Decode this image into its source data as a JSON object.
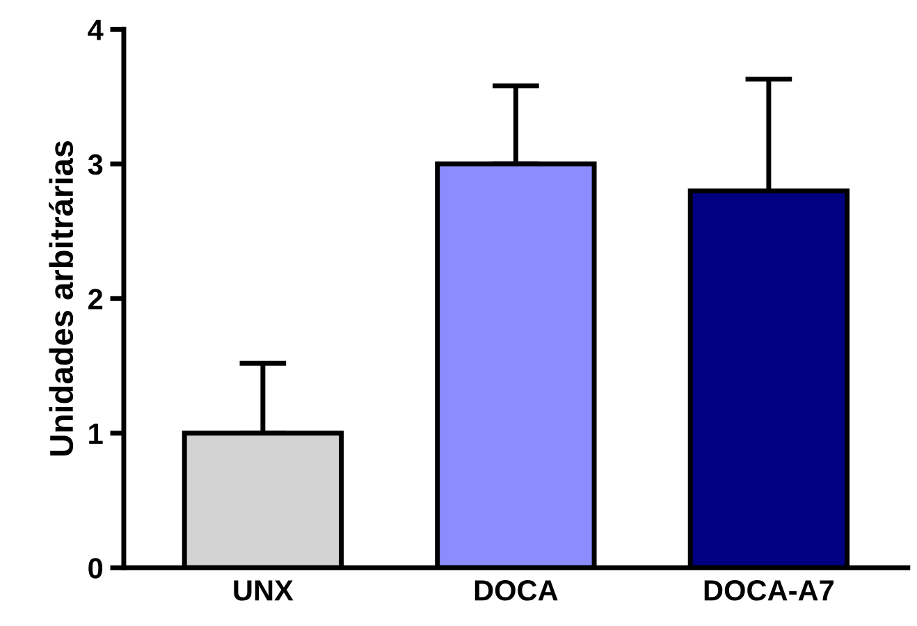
{
  "chart_data": {
    "type": "bar",
    "ylabel": "Unidades arbitrárias",
    "categories": [
      "UNX",
      "DOCA",
      "DOCA-A7"
    ],
    "values": [
      1.0,
      3.0,
      2.8
    ],
    "colors": [
      "#d3d3d3",
      "#8c8cff",
      "#000080"
    ],
    "errors": [
      [
        1.0,
        1.52
      ],
      [
        3.0,
        3.58
      ],
      [
        2.8,
        3.63
      ]
    ],
    "ylim": [
      0,
      4
    ],
    "yticks": [
      0,
      1,
      2,
      3,
      4
    ],
    "grid": false,
    "legend": false
  }
}
